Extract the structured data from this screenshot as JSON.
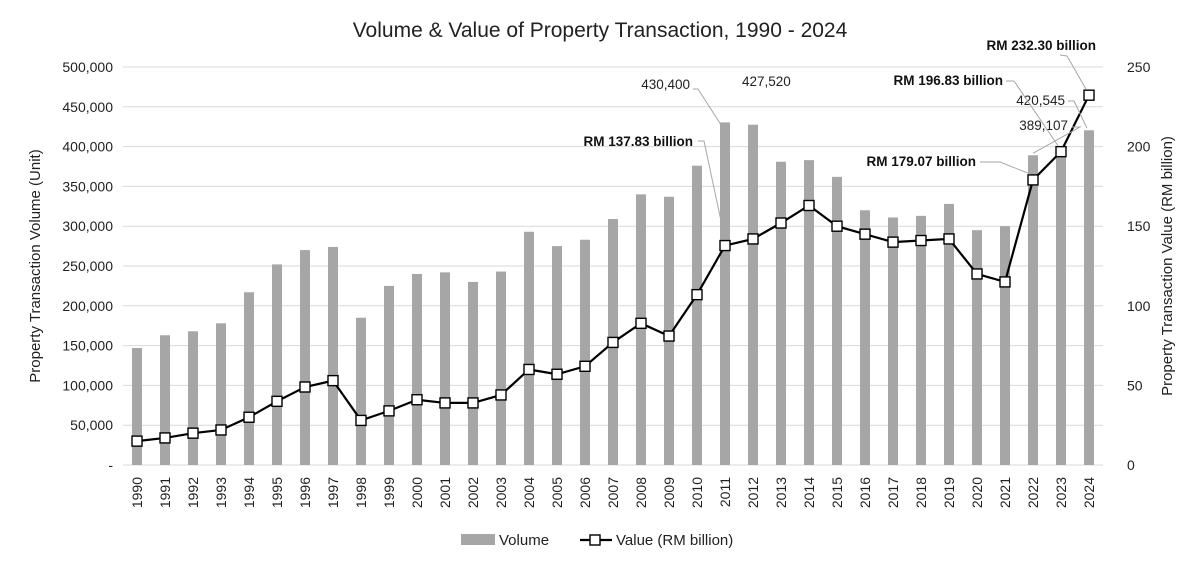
{
  "chart_data": {
    "type": "bar+line",
    "title": "Volume & Value of Property Transaction, 1990 - 2024",
    "ylabel_left": "Property Transaction Volume (Unit)",
    "ylabel_right": "Property Transaction Value (RM billion)",
    "y_left_ticks": [
      "-",
      "50,000",
      "100,000",
      "150,000",
      "200,000",
      "250,000",
      "300,000",
      "350,000",
      "400,000",
      "450,000",
      "500,000"
    ],
    "y_right_ticks": [
      "0",
      "50",
      "100",
      "150",
      "200",
      "250"
    ],
    "y_left_lim": [
      0,
      500000
    ],
    "y_right_lim": [
      0,
      250
    ],
    "grid": true,
    "categories": [
      "1990",
      "1991",
      "1992",
      "1993",
      "1994",
      "1995",
      "1996",
      "1997",
      "1998",
      "1999",
      "2000",
      "2001",
      "2002",
      "2003",
      "2004",
      "2005",
      "2006",
      "2007",
      "2008",
      "2009",
      "2010",
      "2011",
      "2012",
      "2013",
      "2014",
      "2015",
      "2016",
      "2017",
      "2018",
      "2019",
      "2020",
      "2021",
      "2022",
      "2023",
      "2024"
    ],
    "series": [
      {
        "name": "Volume",
        "type": "bar",
        "axis": "left",
        "color": "#a6a6a6",
        "values": [
          147000,
          163000,
          168000,
          178000,
          217000,
          252000,
          270000,
          274000,
          185000,
          225000,
          240000,
          242000,
          230000,
          243000,
          293000,
          275000,
          283000,
          309000,
          340000,
          337000,
          376000,
          430400,
          427520,
          381000,
          383000,
          362000,
          320000,
          311000,
          313000,
          328000,
          295000,
          300000,
          389107,
          400000,
          420545
        ]
      },
      {
        "name": "Value (RM billion)",
        "type": "line",
        "axis": "right",
        "color": "#000000",
        "values": [
          15,
          17,
          20,
          22,
          30,
          40,
          49,
          53,
          28,
          34,
          41,
          39,
          39,
          44,
          60,
          57,
          62,
          77,
          89,
          81,
          107,
          137.83,
          142,
          152,
          163,
          150,
          145,
          140,
          141,
          142,
          120,
          115,
          179.07,
          196.83,
          232.3
        ]
      }
    ],
    "annotations": [
      {
        "text": "430,400",
        "category": "2011",
        "series": "Volume"
      },
      {
        "text": "427,520",
        "category": "2012",
        "series": "Volume"
      },
      {
        "text": "389,107",
        "category": "2022",
        "series": "Volume"
      },
      {
        "text": "420,545",
        "category": "2024",
        "series": "Volume"
      },
      {
        "text": "RM 137.83 billion",
        "category": "2011",
        "series": "Value (RM billion)",
        "bold": true
      },
      {
        "text": "RM 179.07 billion",
        "category": "2022",
        "series": "Value (RM billion)",
        "bold": true
      },
      {
        "text": "RM 196.83 billion",
        "category": "2023",
        "series": "Value (RM billion)",
        "bold": true
      },
      {
        "text": "RM 232.30 billion",
        "category": "2024",
        "series": "Value (RM billion)",
        "bold": true
      }
    ],
    "legend": {
      "position": "bottom",
      "items": [
        {
          "label": "Volume",
          "kind": "bar"
        },
        {
          "label": "Value (RM billion)",
          "kind": "line-marker"
        }
      ]
    }
  }
}
